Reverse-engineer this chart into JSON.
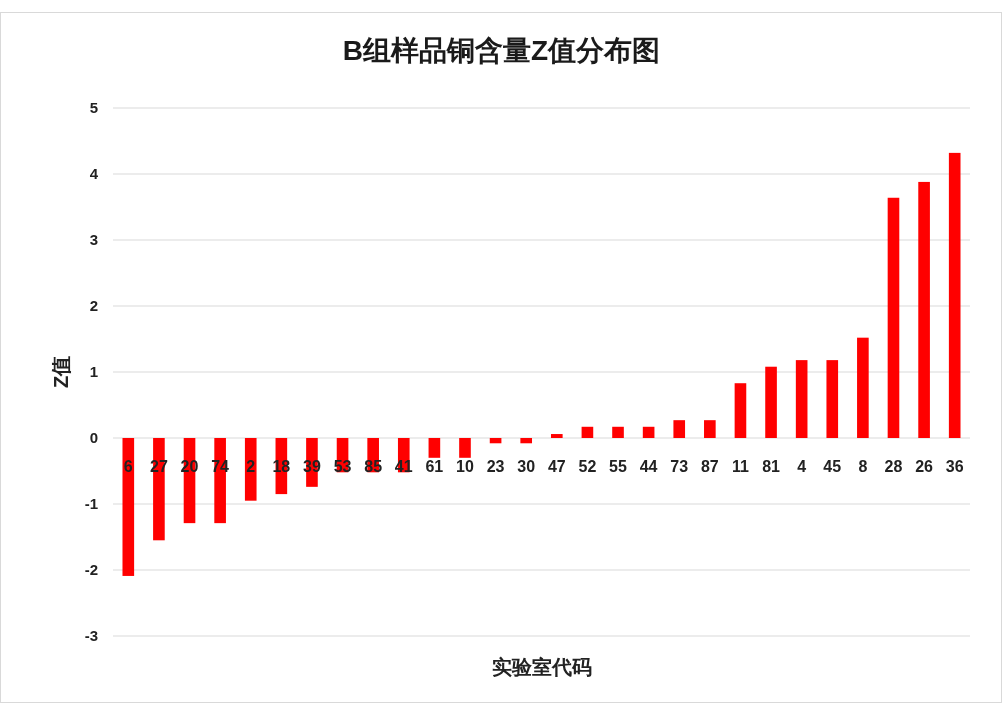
{
  "chart_data": {
    "type": "bar",
    "title": "B组样品铜含量Z值分布图",
    "xlabel": "实验室代码",
    "ylabel": "Z值",
    "categories": [
      "6",
      "27",
      "20",
      "74",
      "2",
      "18",
      "39",
      "53",
      "85",
      "41",
      "61",
      "10",
      "23",
      "30",
      "47",
      "52",
      "55",
      "44",
      "73",
      "87",
      "11",
      "81",
      "4",
      "45",
      "8",
      "28",
      "26",
      "36"
    ],
    "values": [
      -2.09,
      -1.55,
      -1.29,
      -1.29,
      -0.95,
      -0.85,
      -0.74,
      -0.52,
      -0.52,
      -0.52,
      -0.3,
      -0.3,
      -0.08,
      -0.08,
      0.06,
      0.17,
      0.17,
      0.17,
      0.27,
      0.27,
      0.83,
      1.08,
      1.18,
      1.18,
      1.52,
      3.64,
      3.88,
      4.32
    ],
    "color": "#ff0000",
    "ylim": [
      -3,
      5
    ],
    "yticks": [
      -3,
      -2,
      -1,
      0,
      1,
      2,
      3,
      4,
      5
    ],
    "grid": "y"
  }
}
